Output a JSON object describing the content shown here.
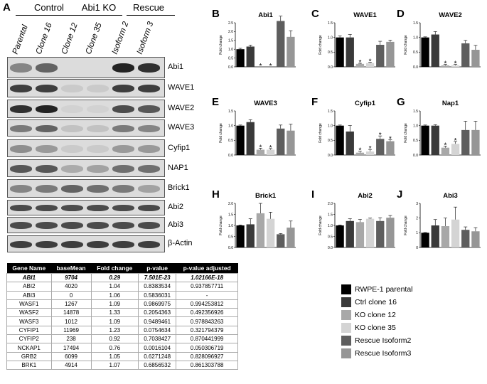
{
  "panel_a": {
    "letter": "A",
    "groups": [
      {
        "label": "Control"
      },
      {
        "label": "Abi1 KO"
      },
      {
        "label": "Rescue"
      }
    ],
    "lanes": [
      "Parental",
      "Clone 16",
      "Clone 12",
      "Clone 35",
      "Isoform 2",
      "Isoform 3"
    ],
    "blots": [
      {
        "label": "Abi1",
        "intensity": [
          0.55,
          0.7,
          0.0,
          0.0,
          0.95,
          0.9
        ]
      },
      {
        "label": "WAVE1",
        "intensity": [
          0.85,
          0.85,
          0.15,
          0.15,
          0.85,
          0.85
        ]
      },
      {
        "label": "WAVE2",
        "intensity": [
          0.9,
          0.95,
          0.08,
          0.08,
          0.8,
          0.75
        ]
      },
      {
        "label": "WAVE3",
        "intensity": [
          0.6,
          0.7,
          0.2,
          0.2,
          0.6,
          0.55
        ]
      },
      {
        "label": "Cyfip1",
        "intensity": [
          0.5,
          0.45,
          0.15,
          0.15,
          0.45,
          0.45
        ]
      },
      {
        "label": "NAP1",
        "intensity": [
          0.75,
          0.75,
          0.35,
          0.4,
          0.65,
          0.65
        ]
      },
      {
        "label": "Brick1",
        "intensity": [
          0.55,
          0.6,
          0.7,
          0.65,
          0.6,
          0.4
        ]
      },
      {
        "label": "Abi2",
        "intensity": [
          0.8,
          0.8,
          0.8,
          0.8,
          0.8,
          0.8
        ]
      },
      {
        "label": "Abi3",
        "intensity": [
          0.8,
          0.8,
          0.8,
          0.8,
          0.8,
          0.8
        ]
      },
      {
        "label": "β-Actin",
        "intensity": [
          0.85,
          0.85,
          0.85,
          0.85,
          0.85,
          0.85
        ]
      }
    ]
  },
  "table": {
    "headers": [
      "Gene Name",
      "baseMean",
      "Fold change",
      "p-value",
      "p-value adjusted"
    ],
    "rows": [
      [
        "ABI1",
        "9704",
        "0.29",
        "7.501E-23",
        "1.02166E-18"
      ],
      [
        "ABI2",
        "4020",
        "1.04",
        "0.8383534",
        "0.937857711"
      ],
      [
        "ABI3",
        "0",
        "1.06",
        "0.5836031",
        "-"
      ],
      [
        "WASF1",
        "1267",
        "1.09",
        "0.9869975",
        "0.994253812"
      ],
      [
        "WASF2",
        "14878",
        "1.33",
        "0.2054363",
        "0.492356926"
      ],
      [
        "WASF3",
        "1012",
        "1.09",
        "0.9489461",
        "0.978843263"
      ],
      [
        "CYFIP1",
        "11969",
        "1.23",
        "0.0754634",
        "0.321794379"
      ],
      [
        "CYFIP2",
        "238",
        "0.92",
        "0.7038427",
        "0.870441999"
      ],
      [
        "NCKAP1",
        "17494",
        "0.76",
        "0.0016104",
        "0.050306719"
      ],
      [
        "GRB2",
        "6099",
        "1.05",
        "0.6271248",
        "0.828096927"
      ],
      [
        "BRK1",
        "4914",
        "1.07",
        "0.6856532",
        "0.861303788"
      ]
    ]
  },
  "legend": [
    {
      "label": "RWPE-1 parental",
      "color": "#000000"
    },
    {
      "label": "Ctrl clone 16",
      "color": "#3a3a3a"
    },
    {
      "label": "KO clone 12",
      "color": "#a8a8a8"
    },
    {
      "label": "KO clone 35",
      "color": "#d4d4d4"
    },
    {
      "label": "Rescue Isoform2",
      "color": "#5e5e5e"
    },
    {
      "label": "Rescue Isoform3",
      "color": "#969696"
    }
  ],
  "chart_data": [
    {
      "type": "bar",
      "letter": "B",
      "title": "Abi1",
      "ylabel": "Fold change",
      "ylim": [
        0,
        2.5
      ],
      "yticks": [
        "0.0",
        "0.5",
        "1.0",
        "1.5",
        "2.0",
        "2.5"
      ],
      "values": [
        1.0,
        1.15,
        0.0,
        0.0,
        2.6,
        1.7
      ],
      "errors": [
        0.05,
        0.08,
        0,
        0,
        0.7,
        0.35
      ],
      "star_label": "*",
      "stars": [
        false,
        false,
        true,
        true,
        false,
        false
      ]
    },
    {
      "type": "bar",
      "letter": "C",
      "title": "WAVE1",
      "ylabel": "Fold change",
      "ylim": [
        0,
        1.5
      ],
      "yticks": [
        "0.0",
        "0.5",
        "1.0",
        "1.5"
      ],
      "values": [
        1.0,
        1.0,
        0.1,
        0.13,
        0.75,
        0.85
      ],
      "errors": [
        0.05,
        0.1,
        0.02,
        0.03,
        0.12,
        0.06
      ],
      "star_label": "*",
      "stars": [
        false,
        false,
        true,
        true,
        false,
        false
      ]
    },
    {
      "type": "bar",
      "letter": "D",
      "title": "WAVE2",
      "ylabel": "Fold change",
      "ylim": [
        0,
        1.5
      ],
      "yticks": [
        "0.0",
        "0.5",
        "1.0",
        "1.5"
      ],
      "values": [
        1.0,
        1.1,
        0.05,
        0.05,
        0.8,
        0.58
      ],
      "errors": [
        0.02,
        0.1,
        0.03,
        0.03,
        0.1,
        0.15
      ],
      "star_label": "*",
      "stars": [
        false,
        false,
        true,
        true,
        false,
        false
      ]
    },
    {
      "type": "bar",
      "letter": "E",
      "title": "WAVE3",
      "ylabel": "Fold change",
      "ylim": [
        0,
        1.5
      ],
      "yticks": [
        "0.0",
        "0.5",
        "1.0",
        "1.5"
      ],
      "values": [
        1.0,
        1.12,
        0.18,
        0.18,
        0.9,
        0.83
      ],
      "errors": [
        0.02,
        0.08,
        0.05,
        0.04,
        0.12,
        0.22
      ],
      "star_label": "*",
      "stars": [
        false,
        false,
        true,
        true,
        false,
        false
      ]
    },
    {
      "type": "bar",
      "letter": "F",
      "title": "Cyfip1",
      "ylabel": "Fold change",
      "ylim": [
        0,
        1.5
      ],
      "yticks": [
        "0.0",
        "0.5",
        "1.0",
        "1.5"
      ],
      "values": [
        1.0,
        0.8,
        0.08,
        0.12,
        0.55,
        0.47
      ],
      "errors": [
        0.02,
        0.2,
        0.05,
        0.07,
        0.1,
        0.05
      ],
      "star_label": "*",
      "stars": [
        false,
        false,
        true,
        true,
        true,
        true
      ]
    },
    {
      "type": "bar",
      "letter": "G",
      "title": "Nap1",
      "ylabel": "Fold change",
      "ylim": [
        0,
        1.5
      ],
      "yticks": [
        "0.0",
        "0.5",
        "1.0",
        "1.5"
      ],
      "values": [
        1.0,
        1.0,
        0.25,
        0.38,
        0.85,
        0.85
      ],
      "errors": [
        0.02,
        0.03,
        0.05,
        0.08,
        0.3,
        0.3
      ],
      "star_label": "*",
      "stars": [
        false,
        false,
        true,
        true,
        false,
        false
      ]
    },
    {
      "type": "bar",
      "letter": "H",
      "title": "Brick1",
      "ylabel": "Fold change",
      "ylim": [
        0,
        2.0
      ],
      "yticks": [
        "0.0",
        "0.5",
        "1.0",
        "1.5",
        "2.0"
      ],
      "values": [
        1.0,
        1.05,
        1.55,
        1.3,
        0.6,
        0.9
      ],
      "errors": [
        0.02,
        0.25,
        0.45,
        0.3,
        0.03,
        0.3
      ],
      "star_label": "*",
      "stars": [
        false,
        false,
        false,
        false,
        false,
        false
      ]
    },
    {
      "type": "bar",
      "letter": "I",
      "title": "Abi2",
      "ylabel": "Fold change",
      "ylim": [
        0,
        2.0
      ],
      "yticks": [
        "0.0",
        "0.5",
        "1.0",
        "1.5",
        "2.0"
      ],
      "values": [
        1.0,
        1.2,
        1.15,
        1.3,
        1.2,
        1.35
      ],
      "errors": [
        0.02,
        0.1,
        0.12,
        0.03,
        0.15,
        0.1
      ],
      "star_label": "*",
      "stars": [
        false,
        false,
        false,
        false,
        false,
        false
      ]
    },
    {
      "type": "bar",
      "letter": "J",
      "title": "Abi3",
      "ylabel": "Fold change",
      "ylim": [
        0,
        3.0
      ],
      "yticks": [
        "0",
        "1",
        "2",
        "3"
      ],
      "values": [
        1.0,
        1.5,
        1.45,
        1.9,
        1.2,
        1.1
      ],
      "errors": [
        0.02,
        0.4,
        0.55,
        0.85,
        0.2,
        0.25
      ],
      "star_label": "*",
      "stars": [
        false,
        false,
        false,
        false,
        false,
        false
      ]
    }
  ]
}
